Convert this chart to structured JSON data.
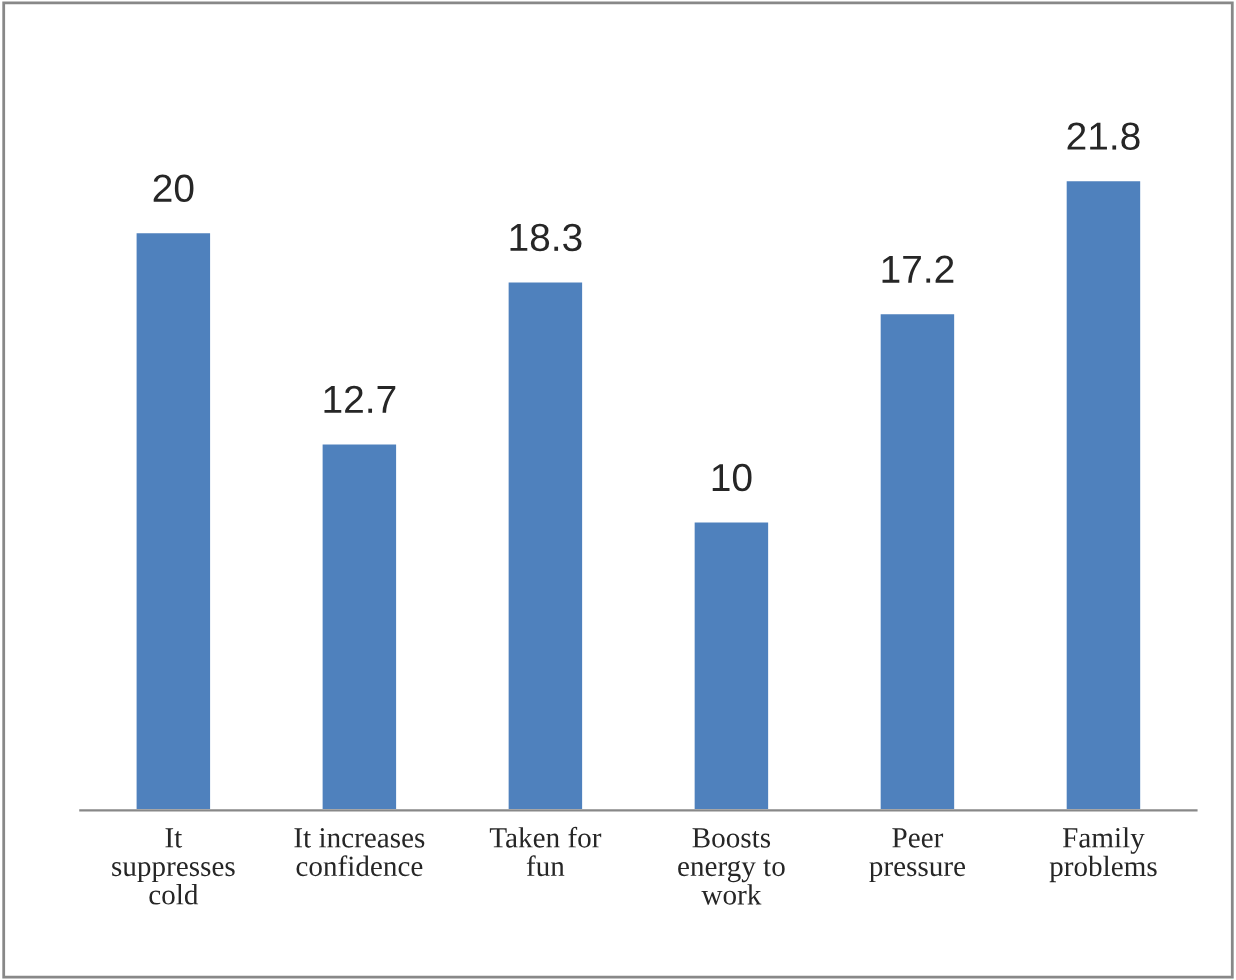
{
  "chart_data": {
    "type": "bar",
    "categories": [
      "It suppresses cold",
      "It increases confidence",
      "Taken for fun",
      "Boosts energy to work",
      "Peer pressure",
      "Family problems"
    ],
    "values": [
      20,
      12.7,
      18.3,
      10,
      17.2,
      21.8
    ],
    "color": "#4f81bd",
    "data_labels": true,
    "grid": false,
    "legend": false
  }
}
